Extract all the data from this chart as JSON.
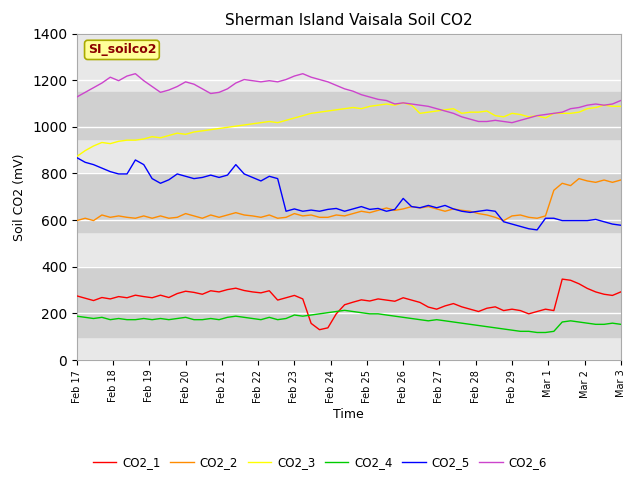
{
  "title": "Sherman Island Vaisala Soil CO2",
  "xlabel": "Time",
  "ylabel": "Soil CO2 (mV)",
  "ylim": [
    0,
    1400
  ],
  "yticks": [
    0,
    200,
    400,
    600,
    800,
    1000,
    1200,
    1400
  ],
  "label_box": "SI_soilco2",
  "legend_labels": [
    "CO2_1",
    "CO2_2",
    "CO2_3",
    "CO2_4",
    "CO2_5",
    "CO2_6"
  ],
  "colors": {
    "CO2_1": "#ff0000",
    "CO2_2": "#ff8c00",
    "CO2_3": "#ffff00",
    "CO2_4": "#00cc00",
    "CO2_5": "#0000ff",
    "CO2_6": "#cc44cc"
  },
  "band_low": [
    100,
    400
  ],
  "band_mid": [
    550,
    800
  ],
  "band_high": [
    950,
    1150
  ],
  "background_color": "#ffffff",
  "plot_bg_color": "#e8e8e8",
  "xtick_labels": [
    "Feb 17",
    "Feb 18",
    "Feb 19",
    "Feb 20",
    "Feb 21",
    "Feb 22",
    "Feb 23",
    "Feb 24",
    "Feb 25",
    "Feb 26",
    "Feb 27",
    "Feb 28",
    "Feb 29",
    "Mar 1",
    "Mar 2",
    "Mar 3"
  ],
  "CO2_1": [
    275,
    265,
    255,
    268,
    262,
    272,
    267,
    278,
    272,
    267,
    278,
    268,
    285,
    295,
    290,
    282,
    297,
    292,
    302,
    308,
    298,
    292,
    288,
    297,
    257,
    267,
    277,
    262,
    157,
    130,
    138,
    198,
    237,
    248,
    258,
    253,
    262,
    257,
    252,
    267,
    257,
    247,
    227,
    218,
    232,
    242,
    228,
    218,
    208,
    222,
    228,
    212,
    218,
    212,
    198,
    208,
    218,
    212,
    347,
    342,
    327,
    307,
    292,
    282,
    277,
    292
  ],
  "CO2_2": [
    598,
    608,
    598,
    622,
    612,
    618,
    612,
    608,
    618,
    608,
    618,
    608,
    612,
    628,
    618,
    608,
    622,
    612,
    622,
    632,
    622,
    618,
    612,
    622,
    608,
    612,
    628,
    618,
    622,
    612,
    612,
    622,
    618,
    628,
    638,
    632,
    642,
    652,
    642,
    648,
    658,
    652,
    658,
    648,
    638,
    648,
    642,
    638,
    628,
    622,
    612,
    598,
    618,
    622,
    612,
    608,
    618,
    728,
    758,
    748,
    778,
    768,
    762,
    772,
    762,
    772
  ],
  "CO2_3": [
    873,
    898,
    918,
    933,
    928,
    938,
    943,
    943,
    948,
    958,
    953,
    963,
    973,
    968,
    978,
    983,
    988,
    993,
    998,
    1003,
    1008,
    1013,
    1018,
    1023,
    1018,
    1028,
    1038,
    1048,
    1058,
    1063,
    1068,
    1073,
    1078,
    1083,
    1078,
    1088,
    1093,
    1098,
    1093,
    1103,
    1093,
    1058,
    1063,
    1068,
    1073,
    1078,
    1058,
    1063,
    1063,
    1068,
    1048,
    1043,
    1058,
    1053,
    1043,
    1048,
    1038,
    1058,
    1058,
    1058,
    1063,
    1078,
    1083,
    1093,
    1088,
    1088
  ],
  "CO2_4": [
    188,
    183,
    178,
    183,
    173,
    178,
    173,
    173,
    178,
    173,
    178,
    173,
    178,
    183,
    173,
    173,
    178,
    173,
    183,
    188,
    183,
    178,
    173,
    183,
    173,
    178,
    193,
    188,
    193,
    198,
    203,
    208,
    213,
    208,
    203,
    198,
    198,
    193,
    188,
    183,
    178,
    173,
    168,
    173,
    168,
    163,
    158,
    153,
    148,
    143,
    138,
    133,
    128,
    123,
    123,
    118,
    118,
    123,
    163,
    168,
    163,
    158,
    153,
    153,
    158,
    153
  ],
  "CO2_5": [
    868,
    848,
    838,
    823,
    808,
    798,
    798,
    858,
    838,
    778,
    758,
    773,
    798,
    788,
    778,
    783,
    793,
    783,
    793,
    838,
    798,
    783,
    768,
    788,
    778,
    638,
    648,
    638,
    643,
    638,
    646,
    650,
    638,
    648,
    658,
    646,
    650,
    638,
    646,
    693,
    658,
    653,
    663,
    653,
    663,
    648,
    638,
    633,
    638,
    643,
    638,
    593,
    583,
    573,
    563,
    558,
    608,
    608,
    598,
    598,
    598,
    598,
    603,
    593,
    583,
    578
  ],
  "CO2_6": [
    1128,
    1148,
    1168,
    1188,
    1213,
    1198,
    1218,
    1228,
    1198,
    1173,
    1148,
    1158,
    1173,
    1193,
    1183,
    1163,
    1143,
    1148,
    1163,
    1188,
    1203,
    1198,
    1193,
    1198,
    1193,
    1203,
    1218,
    1228,
    1213,
    1203,
    1193,
    1178,
    1163,
    1153,
    1138,
    1128,
    1118,
    1113,
    1098,
    1103,
    1098,
    1093,
    1088,
    1078,
    1068,
    1058,
    1043,
    1033,
    1023,
    1023,
    1028,
    1023,
    1018,
    1028,
    1038,
    1048,
    1053,
    1058,
    1063,
    1078,
    1083,
    1093,
    1098,
    1093,
    1098,
    1113
  ]
}
